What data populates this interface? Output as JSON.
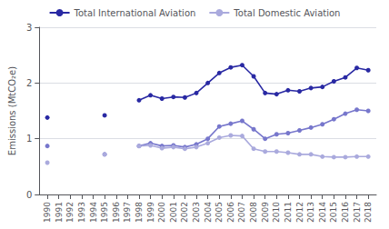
{
  "chart_data": {
    "type": "line",
    "ylabel": "Emissions (MtCO₂e)",
    "x": [
      1990,
      1991,
      1992,
      1993,
      1994,
      1995,
      1996,
      1997,
      1998,
      1999,
      2000,
      2001,
      2002,
      2003,
      2004,
      2005,
      2006,
      2007,
      2008,
      2009,
      2010,
      2011,
      2012,
      2013,
      2014,
      2015,
      2016,
      2017,
      2018
    ],
    "series": [
      {
        "name": "Total International Aviation",
        "color": "#2929a3",
        "values": [
          1.38,
          null,
          null,
          null,
          null,
          1.42,
          null,
          null,
          1.69,
          1.78,
          1.72,
          1.75,
          1.74,
          1.82,
          2.0,
          2.18,
          2.28,
          2.32,
          2.12,
          1.82,
          1.8,
          1.87,
          1.85,
          1.91,
          1.93,
          2.03,
          2.1,
          2.27,
          2.23
        ]
      },
      {
        "color": "#7777cc",
        "values": [
          0.87,
          null,
          null,
          null,
          null,
          0.72,
          null,
          null,
          0.87,
          0.92,
          0.87,
          0.88,
          0.85,
          0.9,
          1.0,
          1.22,
          1.27,
          1.32,
          1.17,
          1.0,
          1.08,
          1.1,
          1.15,
          1.2,
          1.26,
          1.35,
          1.45,
          1.52,
          1.5
        ]
      },
      {
        "name": "Total Domestic Aviation",
        "color": "#aaaadd",
        "values": [
          0.57,
          null,
          null,
          null,
          null,
          0.72,
          null,
          null,
          0.87,
          0.88,
          0.83,
          0.85,
          0.82,
          0.85,
          0.92,
          1.02,
          1.06,
          1.05,
          0.82,
          0.77,
          0.77,
          0.75,
          0.72,
          0.72,
          0.68,
          0.67,
          0.67,
          0.68,
          0.68
        ]
      }
    ],
    "xlim": [
      1989.3,
      2018.7
    ],
    "xticks": [
      1990,
      1991,
      1992,
      1993,
      1994,
      1995,
      1996,
      1997,
      1998,
      1999,
      2000,
      2001,
      2002,
      2003,
      2004,
      2005,
      2006,
      2007,
      2008,
      2009,
      2010,
      2011,
      2012,
      2013,
      2014,
      2015,
      2016,
      2017,
      2018
    ],
    "ylim": [
      0,
      3.0
    ],
    "yticks": [
      0,
      1,
      2,
      3
    ],
    "grid": true,
    "legend": "top",
    "marker": "circle"
  }
}
